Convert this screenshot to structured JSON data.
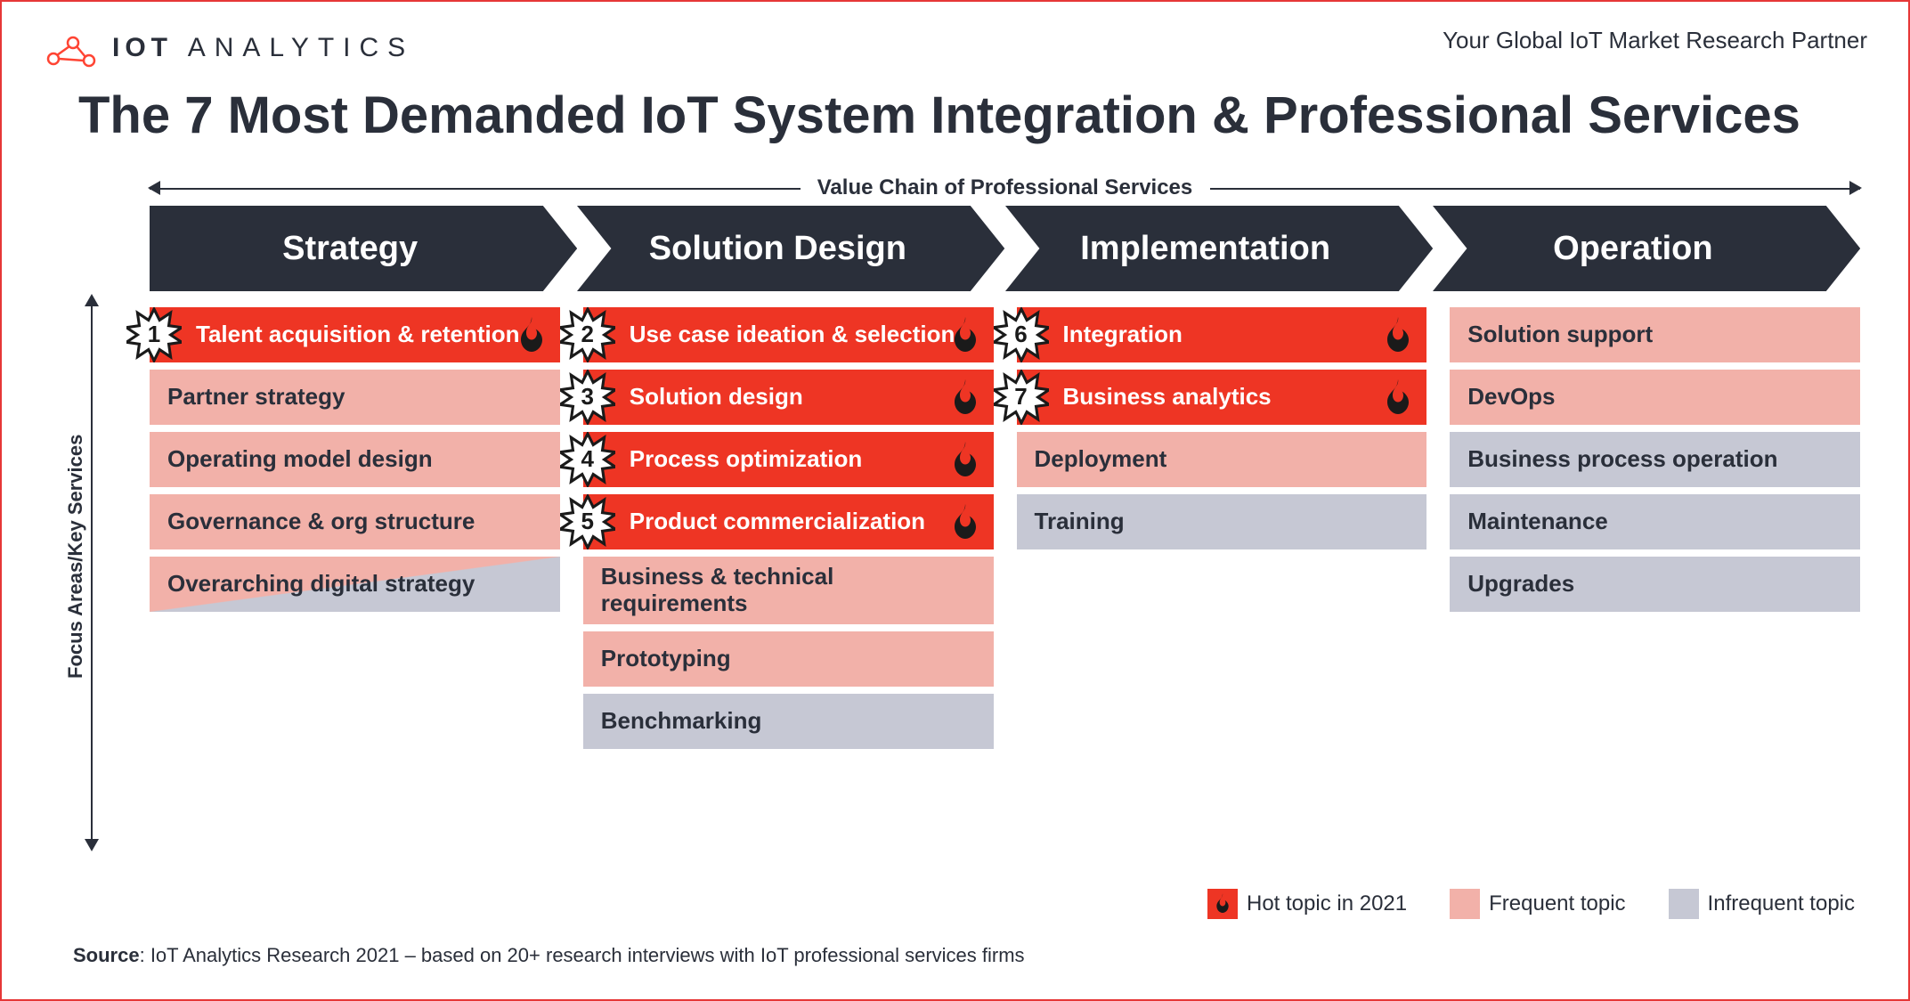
{
  "brand": {
    "name_bold": "IOT",
    "name_light": "ANALYTICS",
    "tagline": "Your Global IoT Market Research Partner",
    "accent_color": "#ff4433"
  },
  "title": "The 7 Most Demanded IoT System Integration & Professional Services",
  "chain_label": "Value Chain of Professional Services",
  "y_axis_label": "Focus Areas/Key Services",
  "colors": {
    "chevron": "#2a2f3a",
    "hot": "#ee3524",
    "frequent": "#f2b1a9",
    "infrequent": "#c6c8d4",
    "text_dark": "#2a2f3a",
    "border": "#e63737"
  },
  "stages": [
    {
      "name": "Strategy",
      "items": [
        {
          "label": "Talent acquisition & retention",
          "tier": "hot",
          "rank": 1
        },
        {
          "label": "Partner strategy",
          "tier": "frequent"
        },
        {
          "label": "Operating model design",
          "tier": "frequent"
        },
        {
          "label": "Governance & org structure",
          "tier": "frequent"
        },
        {
          "label": "Overarching digital strategy",
          "tier": "split"
        }
      ]
    },
    {
      "name": "Solution Design",
      "items": [
        {
          "label": "Use case ideation & selection",
          "tier": "hot",
          "rank": 2
        },
        {
          "label": "Solution design",
          "tier": "hot",
          "rank": 3
        },
        {
          "label": "Process optimization",
          "tier": "hot",
          "rank": 4
        },
        {
          "label": "Product commercialization",
          "tier": "hot",
          "rank": 5
        },
        {
          "label": "Business & technical requirements",
          "tier": "frequent"
        },
        {
          "label": "Prototyping",
          "tier": "frequent"
        },
        {
          "label": "Benchmarking",
          "tier": "infrequent"
        }
      ]
    },
    {
      "name": "Implementation",
      "items": [
        {
          "label": "Integration",
          "tier": "hot",
          "rank": 6
        },
        {
          "label": "Business analytics",
          "tier": "hot",
          "rank": 7
        },
        {
          "label": "Deployment",
          "tier": "frequent"
        },
        {
          "label": "Training",
          "tier": "infrequent"
        }
      ]
    },
    {
      "name": "Operation",
      "items": [
        {
          "label": "Solution support",
          "tier": "frequent"
        },
        {
          "label": "DevOps",
          "tier": "frequent"
        },
        {
          "label": "Business process operation",
          "tier": "infrequent"
        },
        {
          "label": "Maintenance",
          "tier": "infrequent"
        },
        {
          "label": "Upgrades",
          "tier": "infrequent"
        }
      ]
    }
  ],
  "legend": {
    "hot": "Hot topic in 2021",
    "frequent": "Frequent topic",
    "infrequent": "Infrequent topic"
  },
  "source_prefix": "Source",
  "source_text": ": IoT Analytics Research 2021 – based on 20+ research interviews with IoT professional services firms"
}
